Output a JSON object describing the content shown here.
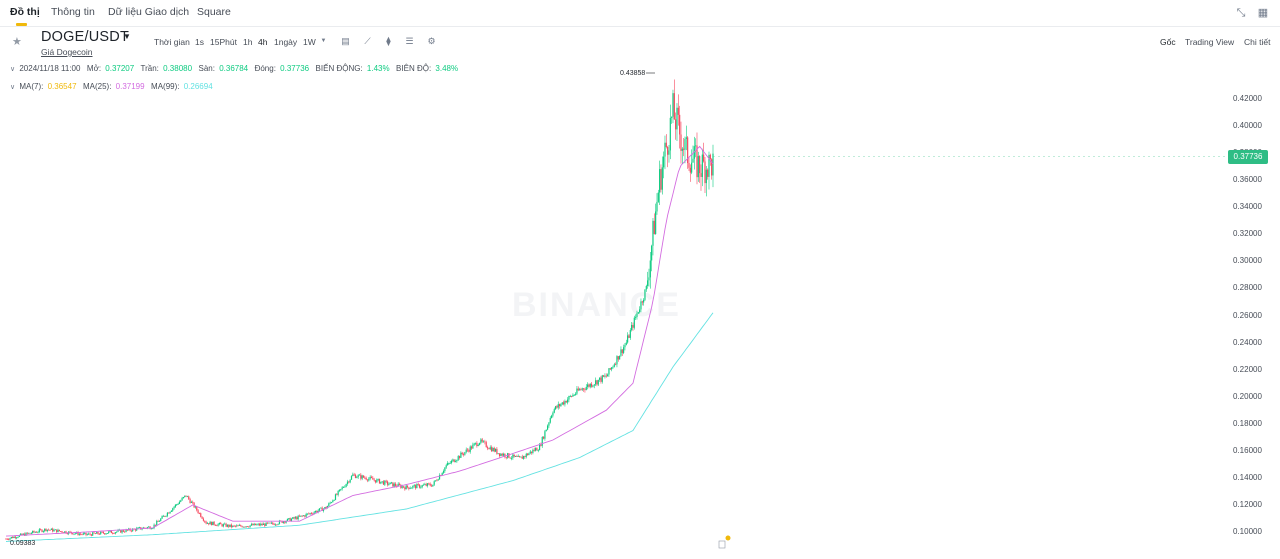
{
  "tabs": [
    "Đồ thị",
    "Thông tin",
    "Dữ liệu Giao dịch",
    "Square"
  ],
  "header_icons": [
    "collapse-icon",
    "grid-icon"
  ],
  "symbol": {
    "pair": "DOGE/USDT",
    "subtitle": "Giá Dogecoin"
  },
  "toolbar": {
    "time_label": "Thời gian",
    "intervals": [
      "1s",
      "15Phút",
      "1h",
      "4h",
      "1ngày",
      "1W"
    ],
    "active_interval": "4h",
    "icons": [
      "candle-type-icon",
      "indicator-icon",
      "depth-icon",
      "layout-icon",
      "settings-icon"
    ]
  },
  "views": [
    "Gốc",
    "Trading View",
    "Chi tiết"
  ],
  "active_view": "Gốc",
  "ohlc": {
    "date": "2024/11/18 11:00",
    "open_label": "Mở:",
    "open": "0.37207",
    "high_label": "Trần:",
    "high": "0.38080",
    "low_label": "Sàn:",
    "low": "0.36784",
    "close_label": "Đóng:",
    "close": "0.37736",
    "change_label": "BIẾN ĐỘNG:",
    "change": "1.43%",
    "amplitude_label": "BIÊN ĐỘ:",
    "amplitude": "3.48%"
  },
  "ma": {
    "ma7_label": "MA(7):",
    "ma7": "0.36547",
    "ma25_label": "MA(25):",
    "ma25": "0.37199",
    "ma99_label": "MA(99):",
    "ma99": "0.26694"
  },
  "watermark": "BINANCE",
  "last_price": "0.37736",
  "max_label": "0.43858",
  "min_label": "0.09383",
  "colors": {
    "up": "#0ecb81",
    "down": "#f6465d",
    "ma7": "#f0b90b",
    "ma25": "#d36ce0",
    "ma99": "#64e2e2",
    "accent": "#f0b90b"
  },
  "chart_data": {
    "type": "candlestick",
    "y_ticks": [
      "0.42000",
      "0.40000",
      "0.38000",
      "0.36000",
      "0.34000",
      "0.32000",
      "0.30000",
      "0.28000",
      "0.26000",
      "0.24000",
      "0.22000",
      "0.20000",
      "0.18000",
      "0.16000",
      "0.14000",
      "0.12000",
      "0.10000"
    ],
    "ylim": [
      0.092,
      0.44
    ],
    "keypoints": [
      [
        0,
        0.095
      ],
      [
        30,
        0.102
      ],
      [
        60,
        0.098
      ],
      [
        90,
        0.101
      ],
      [
        110,
        0.104
      ],
      [
        135,
        0.127
      ],
      [
        150,
        0.107
      ],
      [
        170,
        0.104
      ],
      [
        200,
        0.106
      ],
      [
        220,
        0.111
      ],
      [
        240,
        0.118
      ],
      [
        260,
        0.142
      ],
      [
        270,
        0.14
      ],
      [
        285,
        0.136
      ],
      [
        300,
        0.133
      ],
      [
        320,
        0.135
      ],
      [
        330,
        0.149
      ],
      [
        355,
        0.167
      ],
      [
        370,
        0.158
      ],
      [
        385,
        0.154
      ],
      [
        400,
        0.163
      ],
      [
        410,
        0.19
      ],
      [
        430,
        0.205
      ],
      [
        450,
        0.215
      ],
      [
        465,
        0.24
      ],
      [
        480,
        0.28
      ],
      [
        490,
        0.36
      ],
      [
        500,
        0.41
      ],
      [
        510,
        0.38
      ],
      [
        520,
        0.37
      ],
      [
        530,
        0.372
      ]
    ],
    "ma25_keypoints": [
      [
        0,
        0.097
      ],
      [
        60,
        0.1
      ],
      [
        110,
        0.103
      ],
      [
        140,
        0.12
      ],
      [
        170,
        0.108
      ],
      [
        220,
        0.108
      ],
      [
        260,
        0.127
      ],
      [
        300,
        0.135
      ],
      [
        340,
        0.145
      ],
      [
        380,
        0.158
      ],
      [
        410,
        0.168
      ],
      [
        450,
        0.19
      ],
      [
        470,
        0.21
      ],
      [
        485,
        0.27
      ],
      [
        495,
        0.33
      ],
      [
        505,
        0.37
      ],
      [
        520,
        0.385
      ],
      [
        530,
        0.372
      ]
    ],
    "ma99_keypoints": [
      [
        0,
        0.093
      ],
      [
        110,
        0.098
      ],
      [
        220,
        0.105
      ],
      [
        300,
        0.117
      ],
      [
        380,
        0.138
      ],
      [
        430,
        0.155
      ],
      [
        470,
        0.175
      ],
      [
        500,
        0.222
      ],
      [
        530,
        0.262
      ]
    ]
  }
}
